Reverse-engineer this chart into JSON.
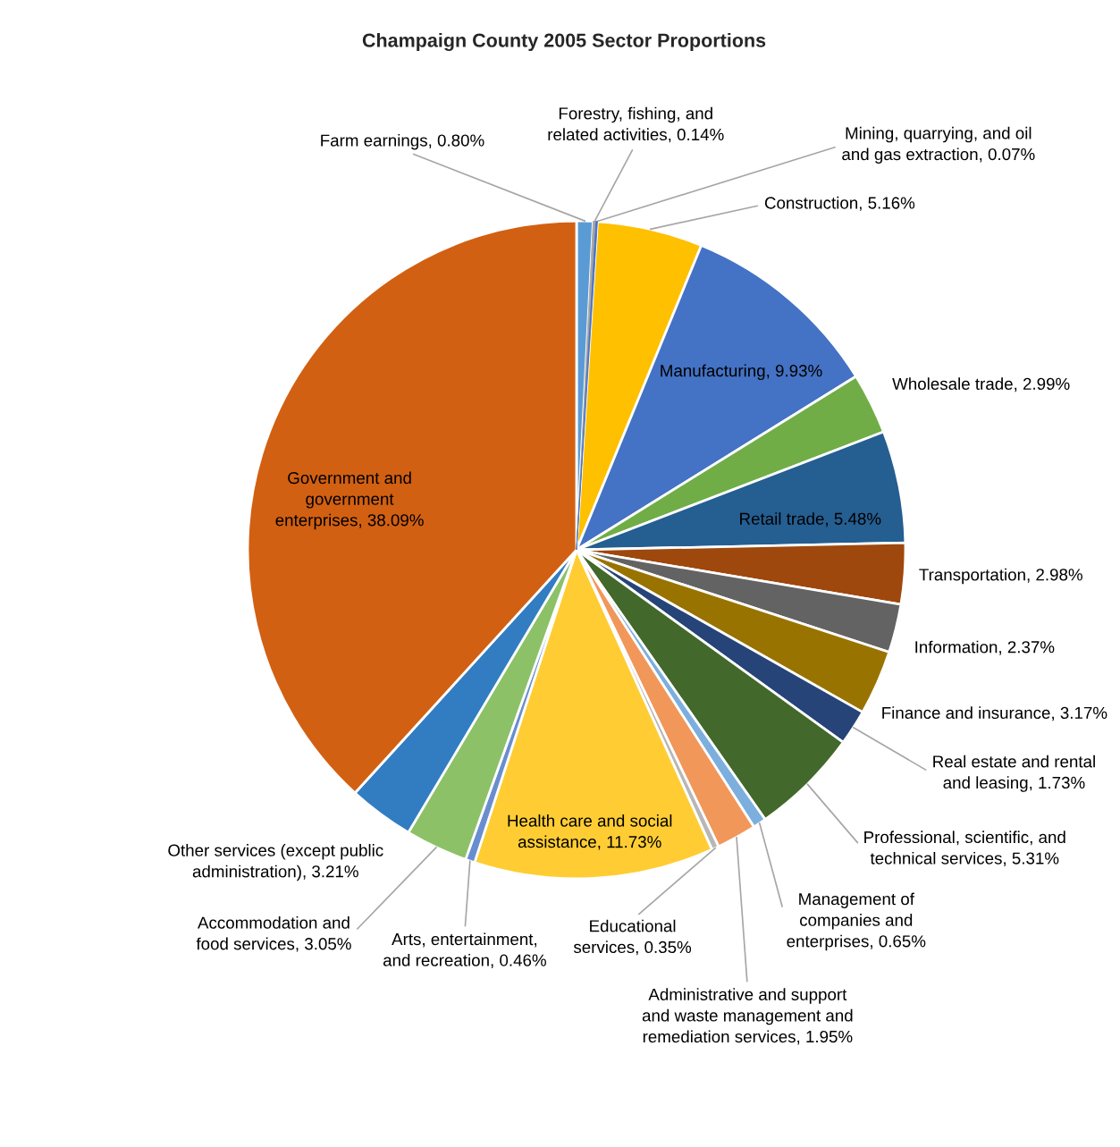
{
  "chart_data": {
    "type": "pie",
    "title": "Champaign County 2005 Sector Proportions",
    "categories": [
      "Farm earnings",
      "Forestry, fishing, and related activities",
      "Mining, quarrying, and oil and gas extraction",
      "Construction",
      "Manufacturing",
      "Wholesale trade",
      "Retail trade",
      "Transportation",
      "Information",
      "Finance and insurance",
      "Real estate and rental and leasing",
      "Professional, scientific, and technical services",
      "Management of companies and enterprises",
      "Administrative and support and waste management and remediation services",
      "Educational services",
      "Health care and social assistance",
      "Arts, entertainment, and recreation",
      "Accommodation and food services",
      "Other services (except public administration)",
      "Government and government enterprises"
    ],
    "values": [
      0.8,
      0.14,
      0.07,
      5.16,
      9.93,
      2.99,
      5.48,
      2.98,
      2.37,
      3.17,
      1.73,
      5.31,
      0.65,
      1.95,
      0.35,
      11.73,
      0.46,
      3.05,
      3.21,
      38.09
    ],
    "value_labels": [
      "0.80%",
      "0.14%",
      "0.07%",
      "5.16%",
      "9.93%",
      "2.99%",
      "5.48%",
      "2.98%",
      "2.37%",
      "3.17%",
      "1.73%",
      "5.31%",
      "0.65%",
      "1.95%",
      "0.35%",
      "11.73%",
      "0.46%",
      "3.05%",
      "3.21%",
      "38.09%"
    ],
    "colors": [
      "#5b9bd5",
      "#a5a5a5",
      "#4472c4",
      "#ffc000",
      "#4472c4",
      "#70ad47",
      "#255e91",
      "#9e480e",
      "#636363",
      "#997300",
      "#264478",
      "#43682b",
      "#7cafdd",
      "#f1975a",
      "#b7b7b7",
      "#ffcd33",
      "#698ed0",
      "#8cc168",
      "#327dc2",
      "#d26012"
    ]
  }
}
